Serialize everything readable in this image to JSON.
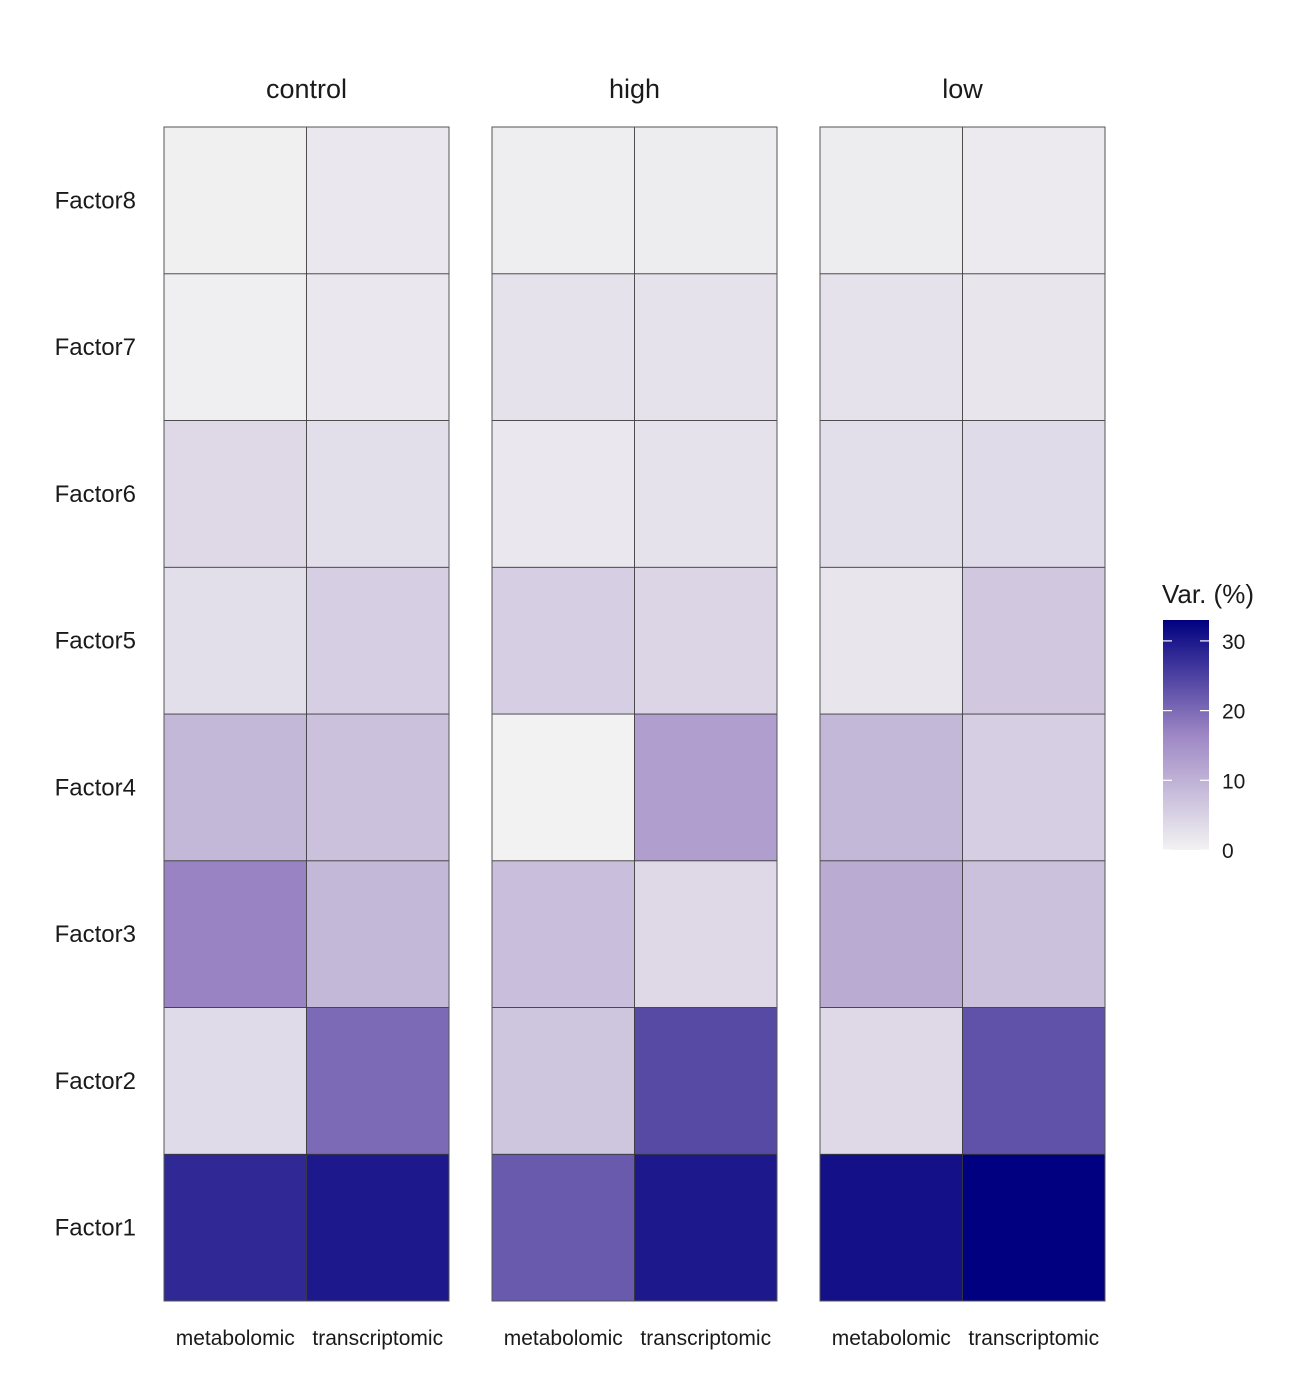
{
  "chart_data": {
    "type": "heatmap",
    "facets": [
      "control",
      "high",
      "low"
    ],
    "x_categories": [
      "metabolomic",
      "transcriptomic"
    ],
    "y_categories": [
      "Factor1",
      "Factor2",
      "Factor3",
      "Factor4",
      "Factor5",
      "Factor6",
      "Factor7",
      "Factor8"
    ],
    "values": {
      "control": {
        "metabolomic": [
          28.0,
          3.5,
          17.0,
          9.0,
          3.0,
          4.0,
          0.5,
          0.3
        ],
        "transcriptomic": [
          30.0,
          20.0,
          9.0,
          7.5,
          5.5,
          3.0,
          1.5,
          1.5
        ]
      },
      "high": {
        "metabolomic": [
          22.0,
          7.0,
          8.0,
          0.0,
          5.5,
          1.5,
          2.5,
          0.8
        ],
        "transcriptomic": [
          30.0,
          24.0,
          4.0,
          13.0,
          4.5,
          2.5,
          2.5,
          1.0
        ]
      },
      "low": {
        "metabolomic": [
          31.0,
          4.0,
          11.0,
          9.0,
          2.0,
          3.0,
          2.5,
          1.0
        ],
        "transcriptomic": [
          33.0,
          23.0,
          7.5,
          5.5,
          6.5,
          3.5,
          2.0,
          1.2
        ]
      }
    },
    "color_scale": {
      "low": "#f2f2f2",
      "mid": "#9e87c4",
      "high": "#000080",
      "min": 0,
      "max": 33
    },
    "legend": {
      "title": "Var. (%)",
      "ticks": [
        0,
        10,
        20,
        30
      ],
      "position": "right"
    },
    "grid": false
  }
}
